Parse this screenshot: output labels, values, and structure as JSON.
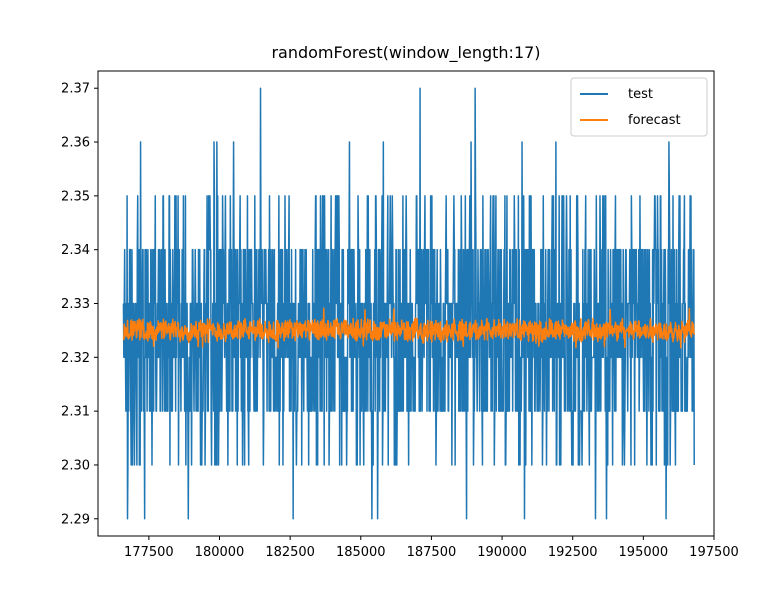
{
  "chart_data": {
    "type": "line",
    "title": "randomForest(window_length:17)",
    "xlabel": "",
    "ylabel": "",
    "xlim": [
      175700,
      197500
    ],
    "ylim": [
      2.2868,
      2.3732
    ],
    "x_range": [
      176600,
      196800
    ],
    "x_ticks": [
      "177500",
      "180000",
      "182500",
      "185000",
      "187500",
      "190000",
      "192500",
      "195000",
      "197500"
    ],
    "y_ticks": [
      "2.29",
      "2.30",
      "2.31",
      "2.32",
      "2.33",
      "2.34",
      "2.35",
      "2.36",
      "2.37"
    ],
    "x_tick_values": [
      177500,
      180000,
      182500,
      185000,
      187500,
      190000,
      192500,
      195000,
      197500
    ],
    "y_tick_values": [
      2.29,
      2.3,
      2.31,
      2.32,
      2.33,
      2.34,
      2.35,
      2.36,
      2.37
    ],
    "legend_position": "upper right",
    "grid": false,
    "series": [
      {
        "name": "test",
        "color": "#1f77b4",
        "value_levels": [
          2.29,
          2.3,
          2.31,
          2.32,
          2.33,
          2.34,
          2.35,
          2.36,
          2.37
        ],
        "typical_range": [
          2.31,
          2.34
        ],
        "spikes_high": [
          {
            "x": 177200,
            "y": 2.36
          },
          {
            "x": 179800,
            "y": 2.36
          },
          {
            "x": 179900,
            "y": 2.36
          },
          {
            "x": 180500,
            "y": 2.36
          },
          {
            "x": 181450,
            "y": 2.37
          },
          {
            "x": 184600,
            "y": 2.36
          },
          {
            "x": 185800,
            "y": 2.36
          },
          {
            "x": 187100,
            "y": 2.37
          },
          {
            "x": 188900,
            "y": 2.36
          },
          {
            "x": 189050,
            "y": 2.37
          },
          {
            "x": 190700,
            "y": 2.36
          },
          {
            "x": 191900,
            "y": 2.36
          },
          {
            "x": 193700,
            "y": 2.36
          },
          {
            "x": 195900,
            "y": 2.36
          }
        ],
        "spikes_low": [
          {
            "x": 176750,
            "y": 2.29
          },
          {
            "x": 177350,
            "y": 2.29
          },
          {
            "x": 178900,
            "y": 2.29
          },
          {
            "x": 182600,
            "y": 2.29
          },
          {
            "x": 185400,
            "y": 2.29
          },
          {
            "x": 185600,
            "y": 2.29
          },
          {
            "x": 188750,
            "y": 2.29
          },
          {
            "x": 190800,
            "y": 2.29
          },
          {
            "x": 193300,
            "y": 2.29
          },
          {
            "x": 193700,
            "y": 2.29
          },
          {
            "x": 195800,
            "y": 2.29
          }
        ]
      },
      {
        "name": "forecast",
        "color": "#ff7f0e",
        "mean": 2.325,
        "typical_range": [
          2.323,
          2.327
        ],
        "extreme_range": [
          2.322,
          2.329
        ]
      }
    ]
  }
}
